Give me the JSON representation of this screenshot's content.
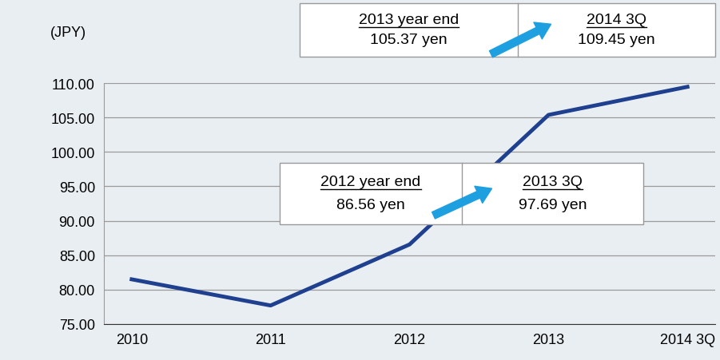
{
  "chart_data": {
    "type": "line",
    "y_label": "(JPY)",
    "categories": [
      "2010",
      "2011",
      "2012",
      "2013",
      "2014 3Q"
    ],
    "values": [
      81.5,
      77.7,
      86.56,
      105.37,
      109.45
    ],
    "color": "#1f3f8f",
    "ylim": [
      75,
      110
    ],
    "yticks": [
      {
        "value": 75,
        "label": "75.00"
      },
      {
        "value": 80,
        "label": "80.00"
      },
      {
        "value": 85,
        "label": "85.00"
      },
      {
        "value": 90,
        "label": "90.00"
      },
      {
        "value": 95,
        "label": "95.00"
      },
      {
        "value": 100,
        "label": "100.00"
      },
      {
        "value": 105,
        "label": "105.00"
      },
      {
        "value": 110,
        "label": "110.00"
      }
    ],
    "grid": true,
    "annotations": [
      {
        "from": {
          "label": "2013 year end",
          "text": "105.37 yen"
        },
        "to": {
          "label": "2014 3Q",
          "text": "109.45 yen"
        }
      },
      {
        "from": {
          "label": "2012 year end",
          "text": "86.56 yen"
        },
        "to": {
          "label": "2013 3Q",
          "text": "97.69 yen"
        }
      }
    ]
  }
}
